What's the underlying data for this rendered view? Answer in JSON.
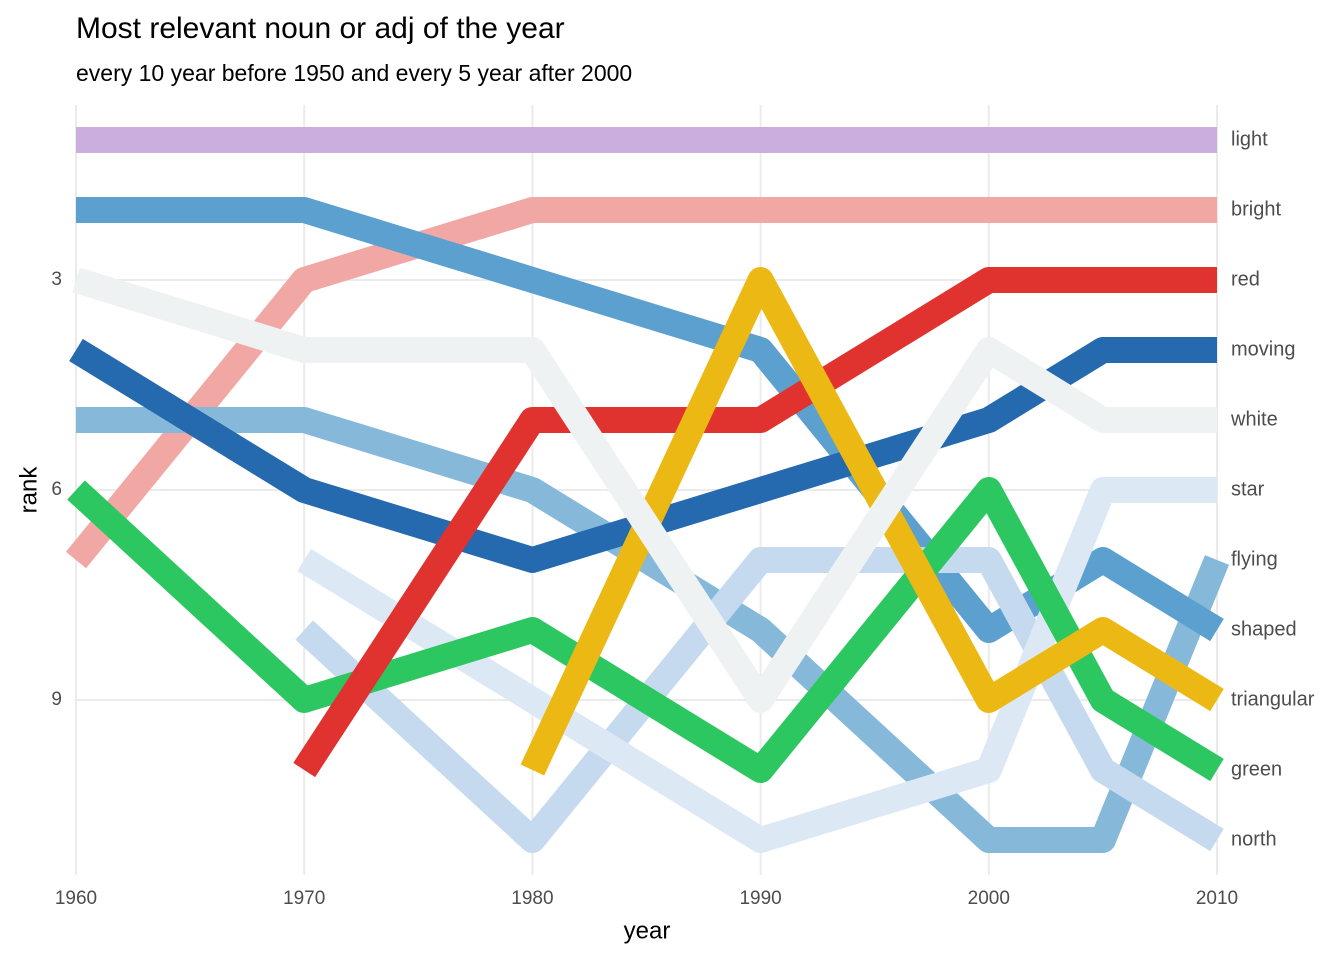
{
  "chart_data": {
    "type": "line",
    "title": "Most relevant noun or adj of the year",
    "subtitle": "every 10 year before 1950 and every 5 year after 2000",
    "x_label": "year",
    "y_label": "rank",
    "x": [
      1960,
      1970,
      1980,
      1990,
      2000,
      2005,
      2010
    ],
    "xlim": [
      1960,
      2010
    ],
    "xticks": [
      1960,
      1970,
      1980,
      1990,
      2000,
      2010
    ],
    "ylim": [
      11.5,
      0.5
    ],
    "yticks": [
      3,
      6,
      9
    ],
    "grid": true,
    "series": [
      {
        "name": "light",
        "color": "#cbaedd",
        "values": [
          1,
          1,
          1,
          1,
          1,
          1,
          1
        ]
      },
      {
        "name": "bright",
        "color": "#f1a8a4",
        "values": [
          7,
          3,
          2,
          2,
          2,
          2,
          2
        ]
      },
      {
        "name": "flying",
        "color": "#86b9d9",
        "values": [
          5,
          5,
          6,
          8,
          11,
          11,
          7
        ]
      },
      {
        "name": "shaped",
        "color": "#5ca0cf",
        "values": [
          2,
          2,
          3,
          4,
          8,
          7,
          8
        ]
      },
      {
        "name": "moving",
        "color": "#2569ae",
        "values": [
          4,
          6,
          7,
          6,
          5,
          4,
          4
        ]
      },
      {
        "name": "north",
        "color": "#c6daef",
        "values": [
          null,
          8,
          11,
          7,
          7,
          10,
          11
        ]
      },
      {
        "name": "star",
        "color": "#dde8f5",
        "values": [
          null,
          7,
          9,
          11,
          10,
          6,
          6
        ]
      },
      {
        "name": "green",
        "color": "#2dc761",
        "values": [
          6,
          9,
          8,
          10,
          6,
          9,
          10
        ]
      },
      {
        "name": "red",
        "color": "#e0332f",
        "values": [
          null,
          10,
          5,
          5,
          3,
          3,
          3
        ]
      },
      {
        "name": "triangular",
        "color": "#ecb914",
        "values": [
          null,
          null,
          10,
          3,
          9,
          8,
          9
        ]
      },
      {
        "name": "white",
        "color": "#eff2f3",
        "values": [
          3,
          4,
          4,
          9,
          4,
          5,
          5
        ]
      }
    ]
  }
}
